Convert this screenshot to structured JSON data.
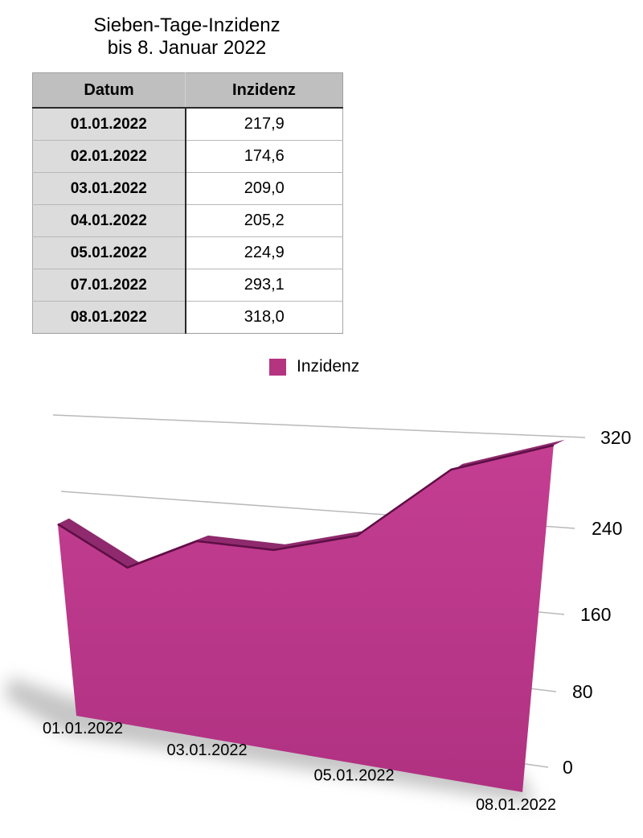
{
  "title": {
    "line1": "Sieben-Tage-Inzidenz",
    "line2": "bis 8. Januar 2022"
  },
  "table": {
    "headers": [
      "Datum",
      "Inzidenz"
    ],
    "rows": [
      [
        "01.01.2022",
        "217,9"
      ],
      [
        "02.01.2022",
        "174,6"
      ],
      [
        "03.01.2022",
        "209,0"
      ],
      [
        "04.01.2022",
        "205,2"
      ],
      [
        "05.01.2022",
        "224,9"
      ],
      [
        "07.01.2022",
        "293,1"
      ],
      [
        "08.01.2022",
        "318,0"
      ]
    ]
  },
  "legend": {
    "label": "Inzidenz",
    "swatch_color": "#b5347f"
  },
  "chart_data": {
    "type": "area",
    "style": "3d-perspective",
    "categories": [
      "01.01.2022",
      "02.01.2022",
      "03.01.2022",
      "04.01.2022",
      "05.01.2022",
      "07.01.2022",
      "08.01.2022"
    ],
    "series": [
      {
        "name": "Inzidenz",
        "values": [
          217.9,
          174.6,
          209.0,
          205.2,
          224.9,
          293.1,
          318.0
        ]
      }
    ],
    "shown_category_labels": [
      "01.01.2022",
      "03.01.2022",
      "05.01.2022",
      "08.01.2022"
    ],
    "ylim": [
      0,
      320
    ],
    "yticks": [
      0,
      80,
      160,
      240,
      320
    ],
    "grid": true,
    "legend_position": "top-center",
    "colors": {
      "area_front_top": "#c43e92",
      "area_front_bottom": "#b03181",
      "area_top_face": "#8e2a6d",
      "area_edge": "#5e0e45",
      "gridline": "#b9b9b9",
      "axis_label": "#000000",
      "shadow": "#8c8c8c"
    }
  }
}
